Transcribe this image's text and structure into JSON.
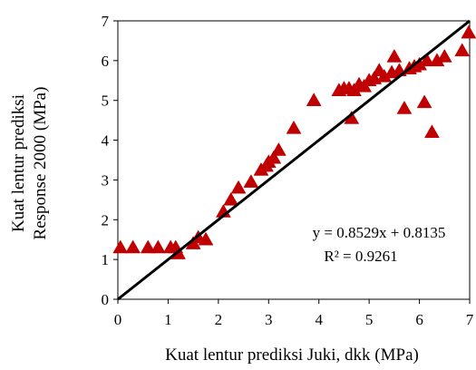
{
  "chart_data": {
    "type": "scatter",
    "xlabel": "Kuat lentur prediksi Juki, dkk (MPa)",
    "ylabel": [
      "Kuat lentur prediksi",
      "Response 2000 (MPa)"
    ],
    "xlim": [
      0,
      7
    ],
    "ylim": [
      0,
      7
    ],
    "xticks": [
      "0",
      "1",
      "2",
      "3",
      "4",
      "5",
      "6",
      "7"
    ],
    "yticks": [
      "0",
      "1",
      "2",
      "3",
      "4",
      "5",
      "6",
      "7"
    ],
    "grid": false,
    "legend": "none",
    "marker": "triangle",
    "marker_color": "#C00000",
    "line_color": "#000000",
    "annotations": {
      "equation": "y = 0.8529x + 0.8135",
      "r_squared": "R² = 0.9261"
    },
    "fit_line": {
      "x": [
        0,
        7
      ],
      "y": [
        0,
        7
      ]
    },
    "series": [
      {
        "points": [
          [
            0.05,
            1.3
          ],
          [
            0.3,
            1.3
          ],
          [
            0.6,
            1.3
          ],
          [
            0.8,
            1.3
          ],
          [
            1.05,
            1.3
          ],
          [
            1.15,
            1.3
          ],
          [
            1.2,
            1.15
          ],
          [
            1.5,
            1.4
          ],
          [
            1.6,
            1.55
          ],
          [
            1.75,
            1.5
          ],
          [
            2.1,
            2.2
          ],
          [
            2.25,
            2.5
          ],
          [
            2.4,
            2.8
          ],
          [
            2.65,
            2.95
          ],
          [
            2.85,
            3.25
          ],
          [
            2.95,
            3.35
          ],
          [
            3.0,
            3.45
          ],
          [
            3.1,
            3.55
          ],
          [
            3.2,
            3.75
          ],
          [
            3.5,
            4.3
          ],
          [
            3.9,
            5.0
          ],
          [
            4.4,
            5.25
          ],
          [
            4.5,
            5.3
          ],
          [
            4.6,
            5.3
          ],
          [
            4.65,
            4.55
          ],
          [
            4.7,
            5.25
          ],
          [
            4.8,
            5.4
          ],
          [
            4.9,
            5.35
          ],
          [
            5.0,
            5.5
          ],
          [
            5.1,
            5.55
          ],
          [
            5.2,
            5.75
          ],
          [
            5.3,
            5.6
          ],
          [
            5.45,
            5.7
          ],
          [
            5.5,
            6.1
          ],
          [
            5.6,
            5.75
          ],
          [
            5.7,
            4.8
          ],
          [
            5.8,
            5.8
          ],
          [
            5.9,
            5.85
          ],
          [
            6.0,
            5.9
          ],
          [
            6.1,
            4.95
          ],
          [
            6.15,
            6.0
          ],
          [
            6.25,
            4.2
          ],
          [
            6.35,
            6.0
          ],
          [
            6.5,
            6.1
          ],
          [
            6.85,
            6.25
          ],
          [
            6.98,
            6.7
          ]
        ]
      }
    ]
  }
}
